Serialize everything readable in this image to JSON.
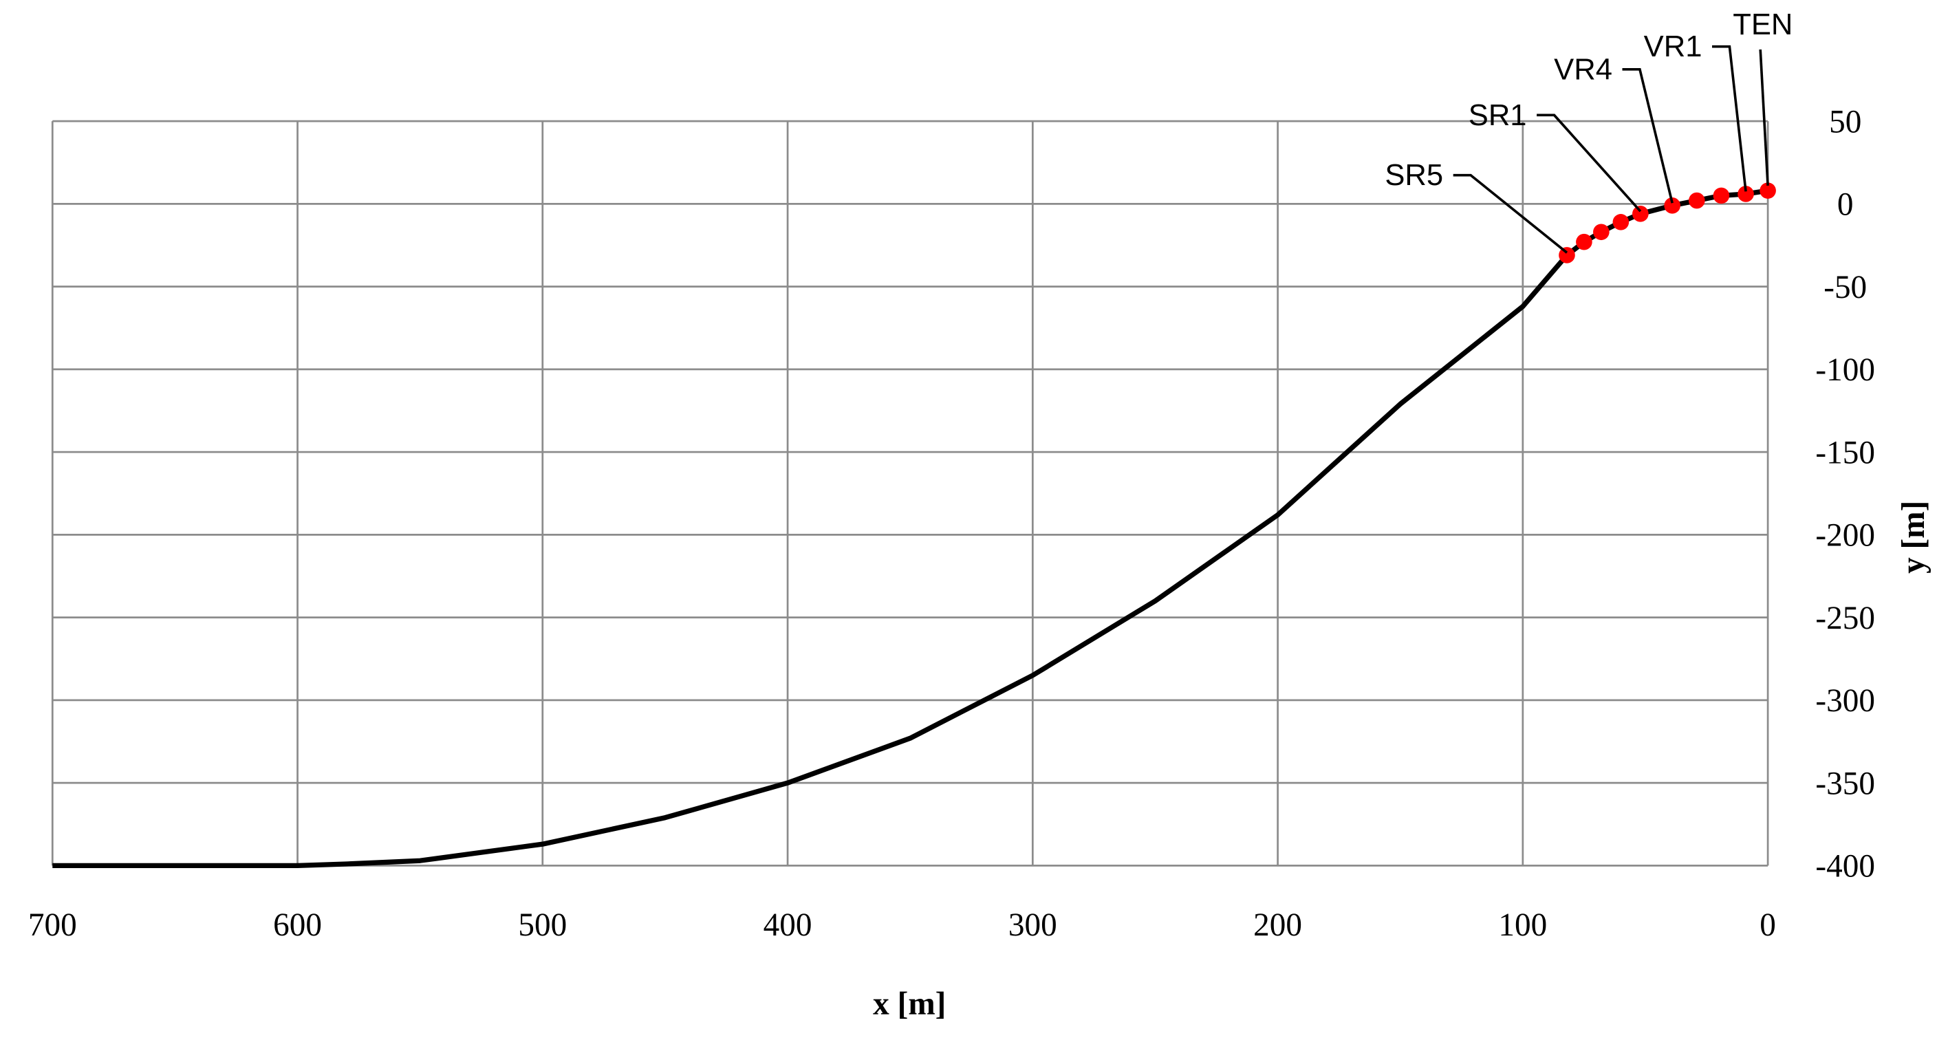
{
  "chart_data": {
    "type": "line",
    "xlabel": "x [m]",
    "ylabel": "y [m]",
    "xlim": [
      700,
      0
    ],
    "xticks": [
      700,
      600,
      500,
      400,
      300,
      200,
      100,
      0
    ],
    "ylim": [
      -400,
      50
    ],
    "yticks": [
      -400,
      -350,
      -300,
      -250,
      -200,
      -150,
      -100,
      -50,
      0,
      50
    ],
    "grid": true,
    "y_axis_side": "right",
    "series": [
      {
        "type": "line",
        "color": "#000000",
        "x": [
          700,
          600,
          580,
          550,
          500,
          450,
          400,
          350,
          300,
          250,
          200,
          150,
          100,
          82,
          75,
          68,
          60,
          52,
          39,
          29,
          19,
          9,
          0
        ],
        "values": [
          -400,
          -400,
          -399,
          -397,
          -387,
          -371,
          -350,
          -323,
          -285,
          -240,
          -188,
          -121,
          -62,
          -31,
          -23,
          -17,
          -11,
          -6,
          -1,
          2,
          5,
          6,
          8
        ]
      },
      {
        "type": "scatter",
        "color": "#ff0000",
        "x": [
          82,
          75,
          68,
          60,
          52,
          39,
          29,
          19,
          9,
          0
        ],
        "values": [
          -31,
          -23,
          -17,
          -11,
          -6,
          -1,
          2,
          5,
          6,
          8
        ]
      }
    ],
    "annotations": [
      {
        "text": "SR5",
        "x": 82,
        "y": -31
      },
      {
        "text": "SR1",
        "x": 52,
        "y": -6
      },
      {
        "text": "VR4",
        "x": 39,
        "y": -1
      },
      {
        "text": "VR1",
        "x": 9,
        "y": 6
      },
      {
        "text": "TEN",
        "x": 0,
        "y": 8
      }
    ]
  }
}
